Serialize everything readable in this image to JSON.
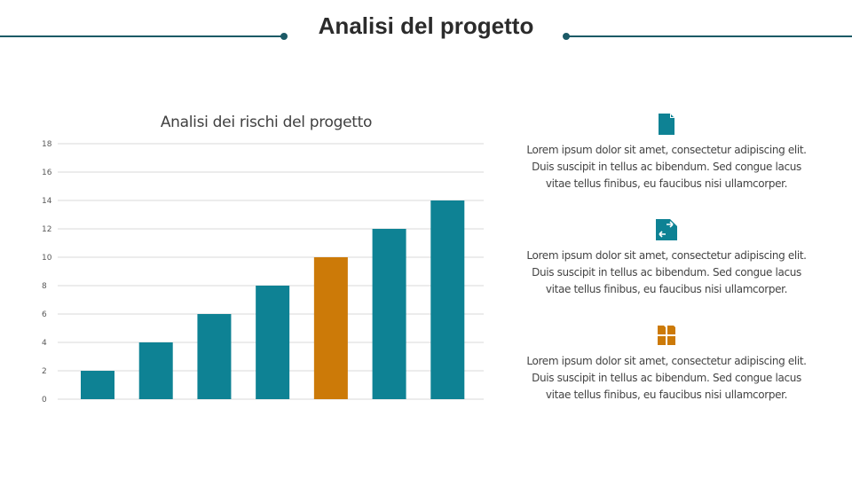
{
  "header": {
    "title": "Analisi del progetto"
  },
  "colors": {
    "primary": "#0e8294",
    "accent": "#cc7a08",
    "line": "#1b5a66"
  },
  "chart_data": {
    "type": "bar",
    "title": "Analisi dei rischi del progetto",
    "categories": [
      "",
      "",
      "",
      "",
      "",
      "",
      ""
    ],
    "values": [
      2,
      4,
      6,
      8,
      10,
      12,
      14
    ],
    "highlight_index": 4,
    "ylim": [
      0,
      18
    ],
    "yticks": [
      "0",
      "2",
      "4",
      "6",
      "8",
      "10",
      "12",
      "14",
      "16",
      "18"
    ],
    "grid": true,
    "legend": "none"
  },
  "features": [
    {
      "icon": "document-icon",
      "color": "#0e8294",
      "text": "Lorem ipsum dolor sit amet, consectetur adipiscing elit. Duis suscipit in tellus ac bibendum. Sed congue lacus vitae tellus finibus, eu faucibus nisi ullamcorper."
    },
    {
      "icon": "transfer-icon",
      "color": "#0e8294",
      "text": "Lorem ipsum dolor sit amet, consectetur adipiscing elit. Duis suscipit in tellus ac bibendum. Sed congue lacus vitae tellus finibus, eu faucibus nisi ullamcorper."
    },
    {
      "icon": "grid-icon",
      "color": "#cc7a08",
      "text": "Lorem ipsum dolor sit amet, consectetur adipiscing elit. Duis suscipit in tellus ac bibendum. Sed congue lacus vitae tellus finibus, eu faucibus nisi ullamcorper."
    }
  ]
}
